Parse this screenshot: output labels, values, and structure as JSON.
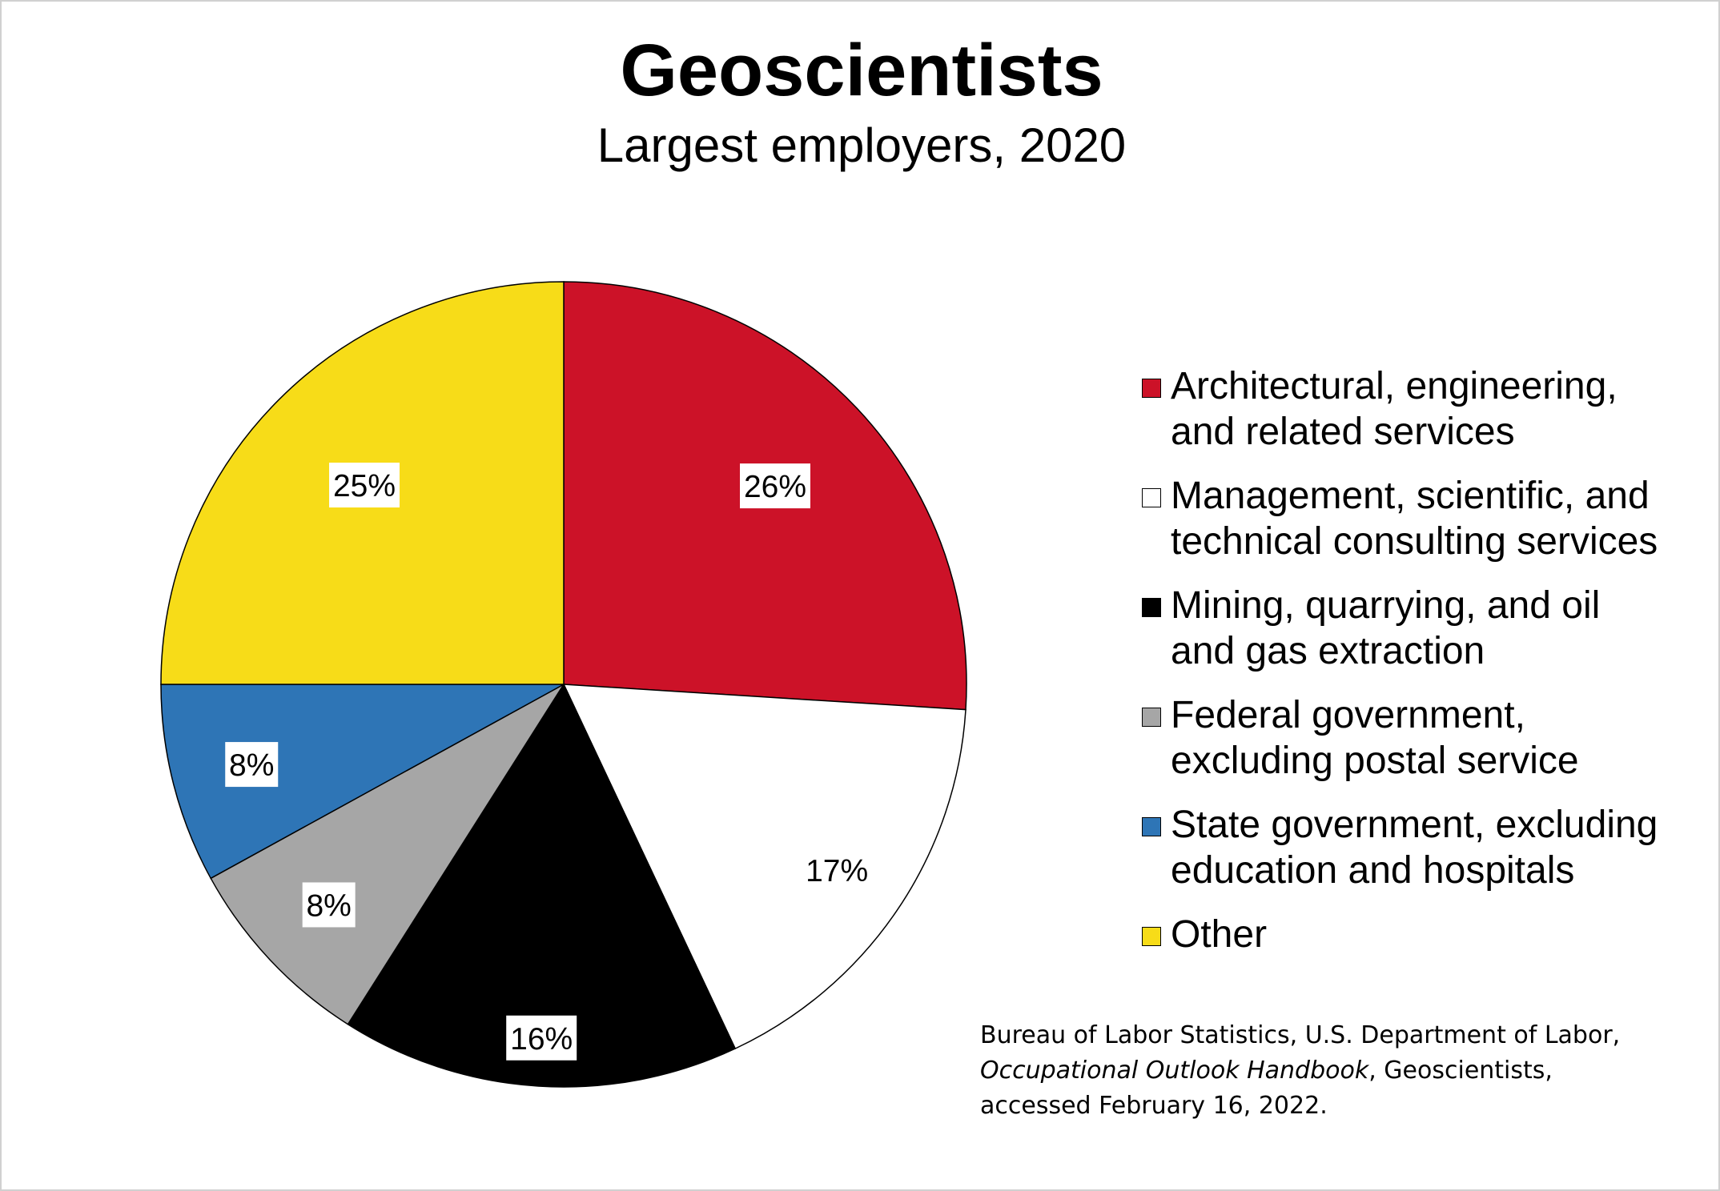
{
  "chart_data": {
    "type": "pie",
    "title": "Geoscientists",
    "subtitle": "Largest employers, 2020",
    "slices": [
      {
        "label": "Architectural, engineering, and related services",
        "value": 26,
        "display": "26%",
        "color": "#CC1228"
      },
      {
        "label": "Management, scientific, and technical consulting services",
        "value": 17,
        "display": "17%",
        "color": "#FFFFFF"
      },
      {
        "label": "Mining, quarrying, and oil and gas extraction",
        "value": 16,
        "display": "16%",
        "color": "#000000"
      },
      {
        "label": "Federal government, excluding postal service",
        "value": 8,
        "display": "8%",
        "color": "#A6A6A6"
      },
      {
        "label": "State government, excluding education and hospitals",
        "value": 8,
        "display": "8%",
        "color": "#2E75B6"
      },
      {
        "label": "Other",
        "value": 25,
        "display": "25%",
        "color": "#F7DC18"
      }
    ],
    "start": "12 o'clock, clockwise",
    "legend_position": "right"
  },
  "legend": [
    [
      "Architectural, engineering,",
      "and related services"
    ],
    [
      "Management, scientific, and",
      "technical consulting services"
    ],
    [
      "Mining, quarrying, and oil",
      "and gas extraction"
    ],
    [
      "Federal government,",
      "excluding postal service"
    ],
    [
      "State government, excluding",
      "education and hospitals"
    ],
    [
      "Other"
    ]
  ],
  "source": {
    "line1": "Bureau of Labor Statistics, U.S. Department of Labor,",
    "line2_italic": "Occupational Outlook Handbook",
    "line2_rest": ", Geoscientists,",
    "line3": "accessed February 16, 2022."
  }
}
